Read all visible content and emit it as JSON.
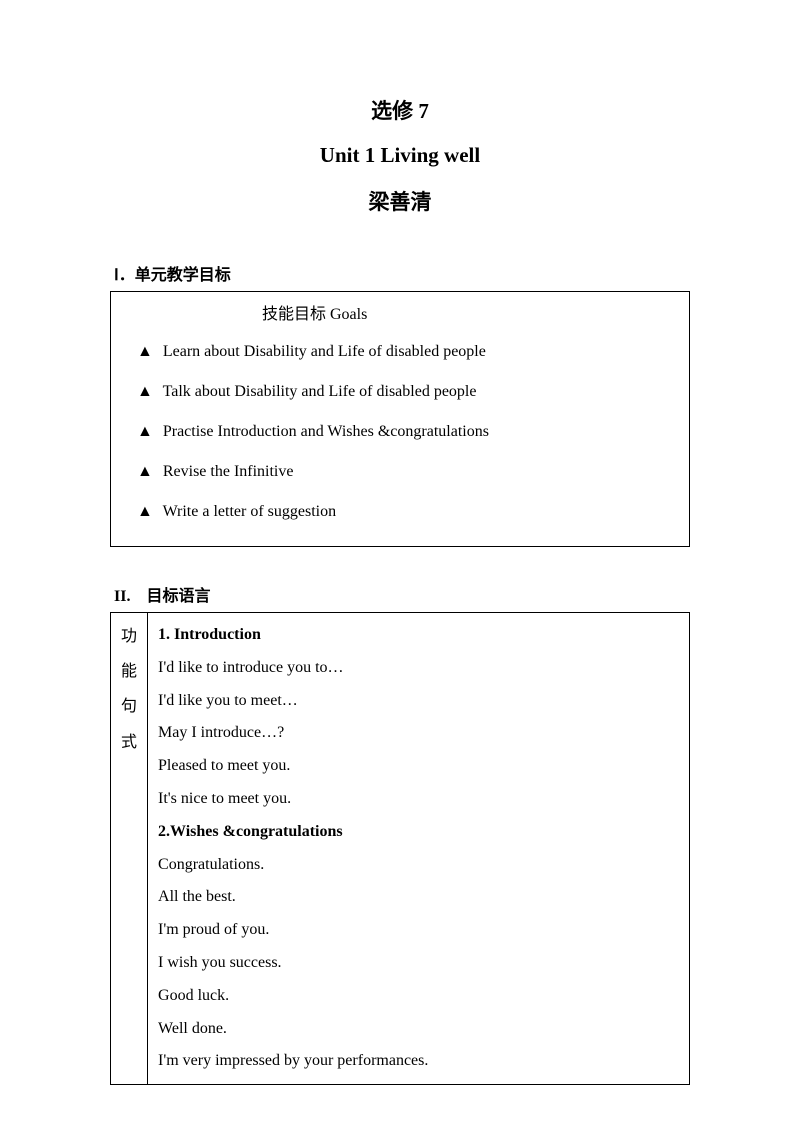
{
  "header": {
    "title1": "选修 7",
    "title2": "Unit 1 Living well",
    "title3": "梁善清"
  },
  "section1": {
    "label": "Ⅰ．单元教学目标",
    "goals_header": "技能目标 Goals",
    "triangle": "▲",
    "items": [
      "Learn about Disability and Life of disabled people",
      "Talk about Disability and Life of disabled people",
      "Practise Introduction and Wishes &congratulations",
      "Revise the Infinitive",
      "Write a letter of suggestion"
    ]
  },
  "section2": {
    "label": "II. 目标语言",
    "vertical_label": {
      "c1": "功",
      "c2": "能",
      "c3": "句",
      "c4": "式"
    },
    "content": {
      "heading1": "1. Introduction",
      "lines1": [
        "I'd like to introduce you to…",
        "I'd like you to meet…",
        "May I introduce…?",
        "Pleased to meet you.",
        "It's nice to meet you."
      ],
      "heading2": "2.Wishes &congratulations",
      "lines2": [
        "Congratulations.",
        "All the best.",
        "I'm proud of you.",
        "I wish you success.",
        "Good luck.",
        "Well done.",
        "I'm very impressed by your performances."
      ]
    }
  },
  "styles": {
    "background_color": "#ffffff",
    "text_color": "#000000",
    "border_color": "#000000",
    "title_fontsize": 21,
    "body_fontsize": 16
  }
}
